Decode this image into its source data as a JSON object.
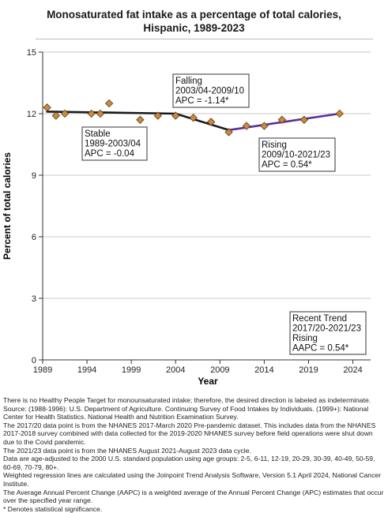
{
  "title_line1": "Monosaturated fat intake as a percentage of total calories,",
  "title_line2": "Hispanic,  1989-2023",
  "chart_data": {
    "type": "scatter",
    "xlabel": "Year",
    "ylabel": "Percent of total calories",
    "xlim": [
      1989,
      2026
    ],
    "ylim": [
      0,
      15
    ],
    "xticks": [
      1989,
      1994,
      1999,
      2004,
      2009,
      2014,
      2019,
      2024
    ],
    "yticks": [
      0,
      3,
      6,
      9,
      12,
      15
    ],
    "grid": true,
    "points": [
      {
        "x": 1989.5,
        "y": 12.3
      },
      {
        "x": 1990.5,
        "y": 11.9
      },
      {
        "x": 1991.5,
        "y": 12.0
      },
      {
        "x": 1994.5,
        "y": 12.0
      },
      {
        "x": 1995.5,
        "y": 12.0
      },
      {
        "x": 1996.5,
        "y": 12.5
      },
      {
        "x": 2000.0,
        "y": 11.7
      },
      {
        "x": 2002.0,
        "y": 11.9
      },
      {
        "x": 2004.0,
        "y": 11.9
      },
      {
        "x": 2006.0,
        "y": 11.8
      },
      {
        "x": 2008.0,
        "y": 11.6
      },
      {
        "x": 2010.0,
        "y": 11.1
      },
      {
        "x": 2012.0,
        "y": 11.4
      },
      {
        "x": 2014.0,
        "y": 11.4
      },
      {
        "x": 2016.0,
        "y": 11.7
      },
      {
        "x": 2018.5,
        "y": 11.7
      },
      {
        "x": 2022.5,
        "y": 12.0
      }
    ],
    "trend_segments": [
      {
        "x": [
          1989.5,
          2004.0
        ],
        "y": [
          12.1,
          12.0
        ],
        "color": "#1a1a1a"
      },
      {
        "x": [
          2004.0,
          2010.0
        ],
        "y": [
          12.0,
          11.2
        ],
        "color": "#1a1a1a"
      },
      {
        "x": [
          2010.0,
          2022.5
        ],
        "y": [
          11.2,
          12.0
        ],
        "color": "#5b2d9e"
      }
    ],
    "marker_color": "#c98a3f",
    "marker_stroke": "#5a3a12",
    "annotations": [
      {
        "lines": [
          "Falling",
          "2003/04-2009/10",
          "APC = -1.14*"
        ]
      },
      {
        "lines": [
          "Stable",
          "1989-2003/04",
          "APC = -0.04"
        ]
      },
      {
        "lines": [
          "Rising",
          "2009/10-2021/23",
          "APC =  0.54*"
        ]
      },
      {
        "lines": [
          "Recent Trend",
          "2017/20-2021/23",
          "Rising",
          "AAPC =  0.54*"
        ]
      }
    ]
  },
  "notes": [
    "There is no Healthy People Target for monounsaturated intake; therefore, the desired direction is labeled as indeterminate.",
    "Source: (1988-1996): U.S. Department of Agriculture. Continuing Survey of Food Intakes by Individuals. (1999+): National Center for Health Statistics. National Health and Nutrition Examination Survey.",
    "The 2017/20 data point is from the NHANES 2017-March 2020 Pre-pandemic dataset. This includes data from the NHANES 2017-2018 survey combined with data collected for the 2019-2020 NHANES survey before field operations were shut down due to the Covid pandemic.",
    "The 2021/23 data point is from the NHANES August 2021-August 2023 data cycle.",
    "Data are age-adjusted to the 2000 U.S. standard population using age groups: 2-5, 6-11, 12-19, 20-29, 30-39, 40-49, 50-59, 60-69, 70-79, 80+.",
    "Weighted regression lines are calculated using the Joinpoint Trend Analysis Software, Version 5.1 April 2024, National Cancer Institute.",
    "The Average Annual Percent Change (AAPC) is a weighted average of the Annual Percent Change (APC) estimates that occur over the specified year range.",
    "* Denotes statistical significance."
  ]
}
